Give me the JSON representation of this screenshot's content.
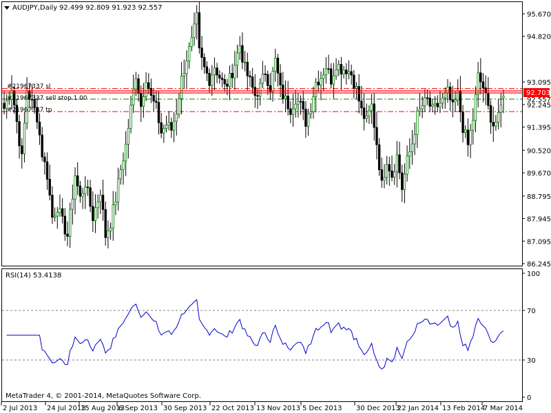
{
  "header": {
    "symbol": "AUDJPY,Daily",
    "ohlc": "92.499 92.809 91.923 92.557"
  },
  "indicator": {
    "label": "RSI(14) 53.4138"
  },
  "copyright": "MetaTrader 4, © 2001-2014, MetaQuotes Software Corp.",
  "annotations": {
    "sl": "#21967337 sl",
    "sell_stop": "#21967337 sell stop 1.00",
    "tp": "#21967337 tp"
  },
  "colors": {
    "bull": "#008000",
    "bear": "#000000",
    "wick": "#000000",
    "rsi_line": "#0000CC",
    "current_price": "#FF0000",
    "order_line": "#FF0000",
    "sell_stop_line": "#008000",
    "grid": "#000000"
  },
  "chart_data": [
    {
      "type": "candlestick",
      "title": "AUDJPY,Daily",
      "ylim": [
        86.245,
        96.2
      ],
      "y_ticks": [
        "95.670",
        "94.820",
        "93.095",
        "92.703",
        "92.557",
        "92.245",
        "91.395",
        "90.520",
        "89.670",
        "88.795",
        "87.945",
        "87.095",
        "86.245"
      ],
      "x_ticks": [
        "2 Jul 2013",
        "24 Jul 2013",
        "15 Aug 2013",
        "6 Sep 2013",
        "30 Sep 2013",
        "22 Oct 2013",
        "13 Nov 2013",
        "5 Dec 2013",
        "30 Dec 2013",
        "22 Jan 2014",
        "13 Feb 2014",
        "7 Mar 2014"
      ],
      "current_price": "92.703",
      "current_price_value": 92.703,
      "second_price_label": "92.557",
      "levels": [
        {
          "name": "#21967337 sl",
          "value": 92.85,
          "style": "dash-dot",
          "color": "#FF0000"
        },
        {
          "name": "#21967337 sell stop 1.00",
          "value": 92.45,
          "style": "dash-dot",
          "color": "#008000"
        },
        {
          "name": "#21967337 tp",
          "value": 91.98,
          "style": "dash-dot",
          "color": "#FF0000"
        }
      ],
      "anchors": [
        [
          0,
          92.1
        ],
        [
          3,
          92.9
        ],
        [
          5,
          91.6
        ],
        [
          7,
          90.2
        ],
        [
          9,
          92.8
        ],
        [
          11,
          92.3
        ],
        [
          13,
          91.8
        ],
        [
          15,
          90.4
        ],
        [
          17,
          89.6
        ],
        [
          19,
          88.0
        ],
        [
          21,
          88.4
        ],
        [
          23,
          87.8
        ],
        [
          25,
          87.3
        ],
        [
          28,
          89.6
        ],
        [
          30,
          88.7
        ],
        [
          32,
          89.3
        ],
        [
          35,
          88.0
        ],
        [
          38,
          89.0
        ],
        [
          40,
          87.3
        ],
        [
          42,
          87.8
        ],
        [
          44,
          88.7
        ],
        [
          46,
          89.8
        ],
        [
          48,
          90.7
        ],
        [
          50,
          92.1
        ],
        [
          52,
          93.4
        ],
        [
          54,
          92.2
        ],
        [
          56,
          93.3
        ],
        [
          58,
          92.5
        ],
        [
          60,
          92.1
        ],
        [
          62,
          91.2
        ],
        [
          64,
          91.5
        ],
        [
          66,
          91.3
        ],
        [
          68,
          92.0
        ],
        [
          70,
          93.2
        ],
        [
          72,
          94.0
        ],
        [
          74,
          94.6
        ],
        [
          76,
          95.5
        ],
        [
          77,
          94.2
        ],
        [
          79,
          93.6
        ],
        [
          81,
          93.2
        ],
        [
          83,
          93.7
        ],
        [
          85,
          93.3
        ],
        [
          87,
          92.9
        ],
        [
          89,
          93.2
        ],
        [
          91,
          93.8
        ],
        [
          93,
          94.5
        ],
        [
          95,
          93.6
        ],
        [
          97,
          93.1
        ],
        [
          99,
          92.6
        ],
        [
          101,
          92.9
        ],
        [
          103,
          93.5
        ],
        [
          105,
          92.9
        ],
        [
          107,
          93.9
        ],
        [
          109,
          92.8
        ],
        [
          111,
          92.4
        ],
        [
          113,
          92.1
        ],
        [
          115,
          92.5
        ],
        [
          117,
          92.2
        ],
        [
          119,
          91.6
        ],
        [
          121,
          92.2
        ],
        [
          123,
          93.1
        ],
        [
          125,
          93.3
        ],
        [
          127,
          93.7
        ],
        [
          129,
          93.2
        ],
        [
          131,
          93.8
        ],
        [
          133,
          93.6
        ],
        [
          135,
          93.6
        ],
        [
          137,
          93.4
        ],
        [
          139,
          92.8
        ],
        [
          141,
          92.0
        ],
        [
          143,
          91.6
        ],
        [
          145,
          92.2
        ],
        [
          147,
          90.8
        ],
        [
          149,
          89.2
        ],
        [
          151,
          90.2
        ],
        [
          153,
          89.6
        ],
        [
          155,
          90.3
        ],
        [
          157,
          89.1
        ],
        [
          159,
          90.1
        ],
        [
          161,
          90.8
        ],
        [
          163,
          91.8
        ],
        [
          165,
          92.2
        ],
        [
          167,
          92.4
        ],
        [
          169,
          92.0
        ],
        [
          171,
          92.2
        ],
        [
          173,
          92.4
        ],
        [
          175,
          92.7
        ],
        [
          177,
          92.1
        ],
        [
          179,
          92.6
        ],
        [
          181,
          91.4
        ],
        [
          183,
          90.7
        ],
        [
          185,
          91.7
        ],
        [
          187,
          93.3
        ],
        [
          189,
          92.9
        ],
        [
          191,
          92.1
        ],
        [
          193,
          91.5
        ],
        [
          195,
          91.7
        ],
        [
          197,
          92.6
        ]
      ],
      "ohlc_open_last": 92.499,
      "ohlc_high_last": 92.809,
      "ohlc_low_last": 91.923,
      "ohlc_close_last": 92.557,
      "candle_count": 198
    },
    {
      "type": "line",
      "title": "RSI(14) 53.4138",
      "ylim": [
        0,
        100
      ],
      "y_ticks": [
        "100",
        "70",
        "30",
        "0"
      ],
      "levels": [
        70,
        30
      ],
      "last_value": 53.4138,
      "color": "#0000CC"
    }
  ]
}
